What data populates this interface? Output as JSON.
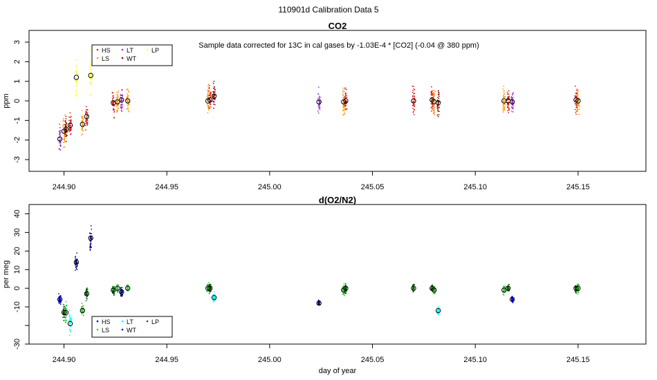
{
  "page_title": "110901d   Calibration Data 5",
  "chart_data": [
    {
      "id": "co2",
      "type": "scatter",
      "title": "CO2",
      "annotation": "Sample data corrected for 13C in cal gases by -1.03E-4 * [CO2] (-0.04 @ 380 ppm)",
      "xlabel": "",
      "ylabel": "ppm",
      "xlim": [
        244.883,
        245.183
      ],
      "ylim": [
        -3.6,
        3.6
      ],
      "xticks": [
        244.9,
        244.95,
        245.0,
        245.05,
        245.1,
        245.15
      ],
      "xtick_labels": [
        "244.90",
        "244.95",
        "245.00",
        "245.05",
        "245.10",
        "245.15"
      ],
      "yticks": [
        -3,
        -2,
        -1,
        0,
        1,
        2,
        3
      ],
      "ytick_labels": [
        "-3",
        "-2",
        "-1",
        "0",
        "1",
        "2",
        "3"
      ],
      "legend": {
        "position": "top-left",
        "entries": [
          {
            "label": "HS",
            "color": "#e41a1c"
          },
          {
            "label": "LT",
            "color": "#9932cc"
          },
          {
            "label": "LP",
            "color": "#ffff33"
          },
          {
            "label": "LS",
            "color": "#ff9900"
          },
          {
            "label": "WT",
            "color": "#8b0000"
          }
        ]
      },
      "clusters": [
        {
          "x": 244.898,
          "color": "#9932cc",
          "mean": -1.95,
          "sd": 0.55
        },
        {
          "x": 244.9,
          "color": "#ff9900",
          "mean": -1.55,
          "sd": 0.6
        },
        {
          "x": 244.901,
          "color": "#8b0000",
          "mean": -1.45,
          "sd": 0.5
        },
        {
          "x": 244.903,
          "color": "#e41a1c",
          "mean": -1.25,
          "sd": 0.45
        },
        {
          "x": 244.906,
          "color": "#ffff33",
          "mean": 1.2,
          "sd": 0.7
        },
        {
          "x": 244.909,
          "color": "#ff9900",
          "mean": -1.2,
          "sd": 0.55
        },
        {
          "x": 244.911,
          "color": "#e41a1c",
          "mean": -0.8,
          "sd": 0.5
        },
        {
          "x": 244.913,
          "color": "#ffff33",
          "mean": 1.3,
          "sd": 0.8
        },
        {
          "x": 244.924,
          "color": "#e41a1c",
          "mean": -0.1,
          "sd": 0.5
        },
        {
          "x": 244.926,
          "color": "#ff9900",
          "mean": -0.05,
          "sd": 0.5
        },
        {
          "x": 244.928,
          "color": "#9932cc",
          "mean": 0.05,
          "sd": 0.45
        },
        {
          "x": 244.931,
          "color": "#ff9900",
          "mean": 0.0,
          "sd": 0.45
        },
        {
          "x": 244.97,
          "color": "#ff9900",
          "mean": 0.0,
          "sd": 0.6
        },
        {
          "x": 244.971,
          "color": "#e41a1c",
          "mean": 0.05,
          "sd": 0.5
        },
        {
          "x": 244.973,
          "color": "#8b0000",
          "mean": 0.25,
          "sd": 0.5
        },
        {
          "x": 245.024,
          "color": "#9932cc",
          "mean": -0.05,
          "sd": 0.5
        },
        {
          "x": 245.036,
          "color": "#ff9900",
          "mean": -0.05,
          "sd": 0.6
        },
        {
          "x": 245.037,
          "color": "#e41a1c",
          "mean": 0.0,
          "sd": 0.5
        },
        {
          "x": 245.07,
          "color": "#e41a1c",
          "mean": 0.0,
          "sd": 0.5
        },
        {
          "x": 245.079,
          "color": "#e41a1c",
          "mean": 0.05,
          "sd": 0.5
        },
        {
          "x": 245.08,
          "color": "#ff9900",
          "mean": -0.05,
          "sd": 0.55
        },
        {
          "x": 245.082,
          "color": "#8b0000",
          "mean": -0.1,
          "sd": 0.5
        },
        {
          "x": 245.114,
          "color": "#ff9900",
          "mean": 0.0,
          "sd": 0.55
        },
        {
          "x": 245.116,
          "color": "#e41a1c",
          "mean": 0.0,
          "sd": 0.5
        },
        {
          "x": 245.118,
          "color": "#9932cc",
          "mean": -0.05,
          "sd": 0.5
        },
        {
          "x": 245.149,
          "color": "#e41a1c",
          "mean": 0.05,
          "sd": 0.6
        },
        {
          "x": 245.15,
          "color": "#ff9900",
          "mean": 0.0,
          "sd": 0.55
        }
      ]
    },
    {
      "id": "o2n2",
      "type": "scatter",
      "title": "d(O2/N2)",
      "xlabel": "day of year",
      "ylabel": "per meg",
      "xlim": [
        244.883,
        245.183
      ],
      "ylim": [
        -30,
        45
      ],
      "xticks": [
        244.9,
        244.95,
        245.0,
        245.05,
        245.1,
        245.15
      ],
      "xtick_labels": [
        "244.90",
        "244.95",
        "245.00",
        "245.05",
        "245.10",
        "245.15"
      ],
      "yticks": [
        -30,
        -20,
        -10,
        0,
        10,
        20,
        30,
        40
      ],
      "ytick_labels": [
        "-30",
        "",
        "-10",
        "0",
        "10",
        "20",
        "30",
        "40"
      ],
      "legend": {
        "position": "bottom-left",
        "entries": [
          {
            "label": "HS",
            "color": "#00008b"
          },
          {
            "label": "LT",
            "color": "#00ffff"
          },
          {
            "label": "LP",
            "color": "#006400"
          },
          {
            "label": "LS",
            "color": "#32cd32"
          },
          {
            "label": "WT",
            "color": "#0000cd"
          }
        ]
      },
      "clusters": [
        {
          "x": 244.898,
          "color": "#0000cd",
          "mean": -6,
          "sd": 2.2
        },
        {
          "x": 244.9,
          "color": "#006400",
          "mean": -13,
          "sd": 4
        },
        {
          "x": 244.901,
          "color": "#32cd32",
          "mean": -13,
          "sd": 4.5
        },
        {
          "x": 244.903,
          "color": "#00ffff",
          "mean": -19,
          "sd": 4
        },
        {
          "x": 244.906,
          "color": "#00008b",
          "mean": 14,
          "sd": 3
        },
        {
          "x": 244.909,
          "color": "#32cd32",
          "mean": -12,
          "sd": 2.5
        },
        {
          "x": 244.911,
          "color": "#006400",
          "mean": -3,
          "sd": 2.5
        },
        {
          "x": 244.913,
          "color": "#00008b",
          "mean": 27,
          "sd": 4.5
        },
        {
          "x": 244.924,
          "color": "#006400",
          "mean": -1,
          "sd": 2
        },
        {
          "x": 244.926,
          "color": "#32cd32",
          "mean": 0,
          "sd": 2
        },
        {
          "x": 244.928,
          "color": "#00008b",
          "mean": -2,
          "sd": 2
        },
        {
          "x": 244.931,
          "color": "#32cd32",
          "mean": 0,
          "sd": 2
        },
        {
          "x": 244.97,
          "color": "#32cd32",
          "mean": 0,
          "sd": 2
        },
        {
          "x": 244.971,
          "color": "#006400",
          "mean": 0,
          "sd": 1.8
        },
        {
          "x": 244.973,
          "color": "#00ffff",
          "mean": -5,
          "sd": 1.8
        },
        {
          "x": 245.024,
          "color": "#00008b",
          "mean": -8,
          "sd": 1.2
        },
        {
          "x": 245.036,
          "color": "#32cd32",
          "mean": -1,
          "sd": 2
        },
        {
          "x": 245.037,
          "color": "#006400",
          "mean": 0,
          "sd": 2
        },
        {
          "x": 245.07,
          "color": "#006400",
          "mean": 0,
          "sd": 2
        },
        {
          "x": 245.079,
          "color": "#006400",
          "mean": 0,
          "sd": 1.5
        },
        {
          "x": 245.08,
          "color": "#32cd32",
          "mean": -1,
          "sd": 2
        },
        {
          "x": 245.082,
          "color": "#00ffff",
          "mean": -12,
          "sd": 1.5
        },
        {
          "x": 245.114,
          "color": "#32cd32",
          "mean": -1,
          "sd": 2
        },
        {
          "x": 245.116,
          "color": "#006400",
          "mean": 0,
          "sd": 1.5
        },
        {
          "x": 245.118,
          "color": "#0000cd",
          "mean": -6,
          "sd": 1.5
        },
        {
          "x": 245.149,
          "color": "#006400",
          "mean": 0,
          "sd": 2
        },
        {
          "x": 245.15,
          "color": "#32cd32",
          "mean": 0,
          "sd": 2
        }
      ]
    }
  ]
}
